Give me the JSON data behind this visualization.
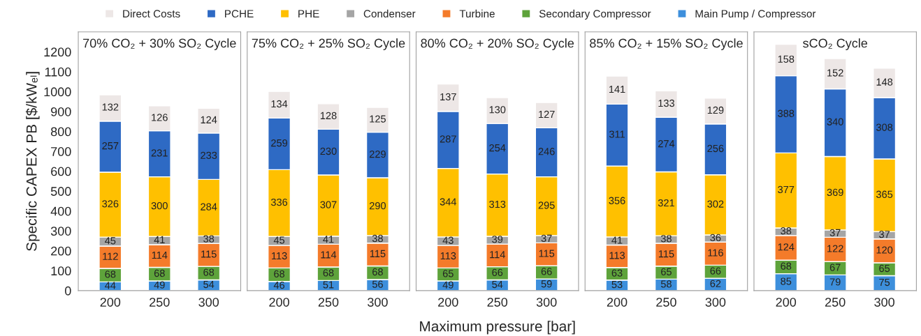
{
  "chart_data": [
    {
      "type": "bar",
      "stacked": true,
      "title": "70% CO₂ + 30% SO₂ Cycle",
      "ylabel": "Specific CAPEX PB [$/kWₑₗ]",
      "legend": "top",
      "data_labels": true,
      "categories": [
        "200",
        "250",
        "300"
      ],
      "ylim": [
        0,
        1300
      ],
      "yticks": [
        0,
        100,
        200,
        300,
        400,
        500,
        600,
        700,
        800,
        900,
        1000,
        1100,
        1200
      ],
      "series": [
        {
          "name": "Main Pump / Compressor",
          "color": "#3d8fdc",
          "values": [
            44,
            49,
            54
          ]
        },
        {
          "name": "Secondary Compressor",
          "color": "#5ea33b",
          "values": [
            68,
            68,
            68
          ]
        },
        {
          "name": "Turbine",
          "color": "#f47b2a",
          "values": [
            112,
            114,
            115
          ]
        },
        {
          "name": "Condenser",
          "color": "#a5a5a5",
          "values": [
            45,
            41,
            38
          ]
        },
        {
          "name": "PHE",
          "color": "#ffc000",
          "values": [
            326,
            300,
            284
          ]
        },
        {
          "name": "PCHE",
          "color": "#2e6ac4",
          "values": [
            257,
            231,
            233
          ]
        },
        {
          "name": "Direct Costs",
          "color": "#ede7e6",
          "values": [
            132,
            126,
            124
          ]
        }
      ]
    },
    {
      "type": "bar",
      "stacked": true,
      "title": "75% CO₂ + 25% SO₂ Cycle",
      "data_labels": true,
      "tick_labels": "x",
      "categories": [
        "200",
        "250",
        "300"
      ],
      "ylim": [
        0,
        1300
      ],
      "yticks": [
        0,
        100,
        200,
        300,
        400,
        500,
        600,
        700,
        800,
        900,
        1000,
        1100,
        1200
      ],
      "series": [
        {
          "color": "#3d8fdc",
          "values": [
            46,
            51,
            56
          ]
        },
        {
          "color": "#5ea33b",
          "values": [
            68,
            68,
            68
          ]
        },
        {
          "color": "#f47b2a",
          "values": [
            113,
            114,
            115
          ]
        },
        {
          "color": "#a5a5a5",
          "values": [
            45,
            41,
            38
          ]
        },
        {
          "color": "#ffc000",
          "values": [
            336,
            307,
            290
          ]
        },
        {
          "color": "#2e6ac4",
          "values": [
            259,
            230,
            229
          ]
        },
        {
          "color": "#ede7e6",
          "values": [
            134,
            128,
            125
          ]
        }
      ]
    },
    {
      "type": "bar",
      "stacked": true,
      "title": "80% CO₂ + 20% SO₂ Cycle",
      "xlabel": "Maximum pressure [bar]",
      "data_labels": true,
      "tick_labels": "x",
      "categories": [
        "200",
        "250",
        "300"
      ],
      "ylim": [
        0,
        1300
      ],
      "yticks": [
        0,
        100,
        200,
        300,
        400,
        500,
        600,
        700,
        800,
        900,
        1000,
        1100,
        1200
      ],
      "series": [
        {
          "color": "#3d8fdc",
          "values": [
            49,
            54,
            59
          ]
        },
        {
          "color": "#5ea33b",
          "values": [
            65,
            66,
            66
          ]
        },
        {
          "color": "#f47b2a",
          "values": [
            113,
            114,
            115
          ]
        },
        {
          "color": "#a5a5a5",
          "values": [
            43,
            39,
            37
          ]
        },
        {
          "color": "#ffc000",
          "values": [
            344,
            313,
            295
          ]
        },
        {
          "color": "#2e6ac4",
          "values": [
            287,
            254,
            246
          ]
        },
        {
          "color": "#ede7e6",
          "values": [
            137,
            130,
            127
          ]
        }
      ]
    },
    {
      "type": "bar",
      "stacked": true,
      "title": "85% CO₂ + 15% SO₂ Cycle",
      "data_labels": true,
      "tick_labels": "x",
      "categories": [
        "200",
        "250",
        "300"
      ],
      "ylim": [
        0,
        1300
      ],
      "yticks": [
        0,
        100,
        200,
        300,
        400,
        500,
        600,
        700,
        800,
        900,
        1000,
        1100,
        1200
      ],
      "series": [
        {
          "color": "#3d8fdc",
          "values": [
            53,
            58,
            62
          ]
        },
        {
          "color": "#5ea33b",
          "values": [
            63,
            65,
            66
          ]
        },
        {
          "color": "#f47b2a",
          "values": [
            113,
            115,
            116
          ]
        },
        {
          "color": "#a5a5a5",
          "values": [
            41,
            38,
            36
          ]
        },
        {
          "color": "#ffc000",
          "values": [
            356,
            321,
            302
          ]
        },
        {
          "color": "#2e6ac4",
          "values": [
            311,
            274,
            256
          ]
        },
        {
          "color": "#ede7e6",
          "values": [
            141,
            133,
            129
          ]
        }
      ]
    },
    {
      "type": "bar",
      "stacked": true,
      "title": "sCO₂ Cycle",
      "data_labels": true,
      "tick_labels": "x",
      "categories": [
        "200",
        "250",
        "300"
      ],
      "ylim": [
        0,
        1300
      ],
      "yticks": [
        0,
        100,
        200,
        300,
        400,
        500,
        600,
        700,
        800,
        900,
        1000,
        1100,
        1200
      ],
      "series": [
        {
          "color": "#3d8fdc",
          "values": [
            85,
            79,
            75
          ]
        },
        {
          "color": "#5ea33b",
          "values": [
            68,
            67,
            65
          ]
        },
        {
          "color": "#f47b2a",
          "values": [
            124,
            122,
            120
          ]
        },
        {
          "color": "#a5a5a5",
          "values": [
            38,
            37,
            37
          ]
        },
        {
          "color": "#ffc000",
          "values": [
            377,
            369,
            365
          ]
        },
        {
          "color": "#2e6ac4",
          "values": [
            388,
            340,
            308
          ]
        },
        {
          "color": "#ede7e6",
          "values": [
            158,
            152,
            148
          ]
        }
      ]
    }
  ]
}
